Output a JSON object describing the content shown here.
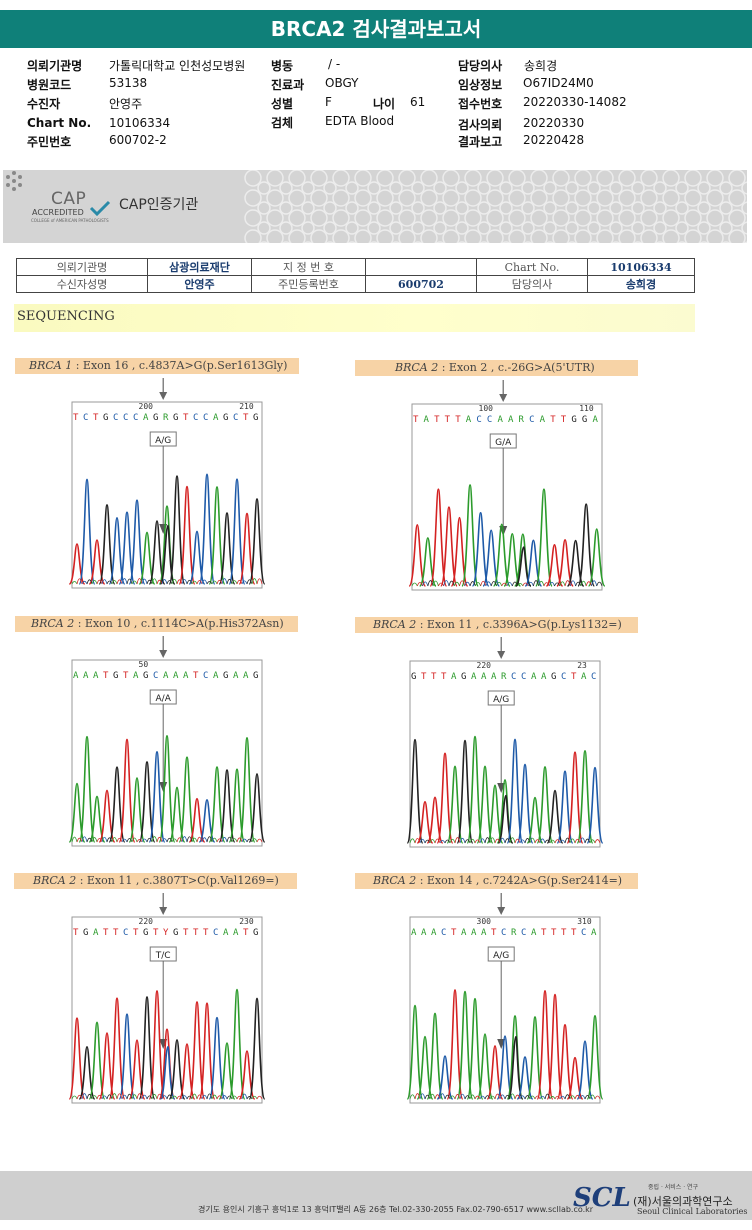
{
  "title": "BRCA2 검사결과보고서",
  "info": {
    "col1": [
      {
        "label": "의뢰기관명",
        "value": "가톨릭대학교 인천성모병원"
      },
      {
        "label": "병원코드",
        "value": "53138"
      },
      {
        "label": "수진자",
        "value": "안영주"
      },
      {
        "label": "Chart No.",
        "value": "10106334"
      },
      {
        "label": "주민번호",
        "value": "600702-2"
      }
    ],
    "col2": [
      {
        "label": "병동",
        "value": "/ -"
      },
      {
        "label": "진료과",
        "value": "OBGY"
      },
      {
        "label": "성별",
        "value": "F"
      },
      {
        "label": "검체",
        "value": "EDTA Blood"
      }
    ],
    "age_label": "나이",
    "age_value": "61",
    "col3": [
      {
        "label": "담당의사",
        "value": "송희경"
      },
      {
        "label": "임상정보",
        "value": "O67ID24M0"
      },
      {
        "label": "접수번호",
        "value": "20220330-14082"
      },
      {
        "label": "검사의뢰",
        "value": "20220330"
      },
      {
        "label": "결과보고",
        "value": "20220428"
      }
    ]
  },
  "cap": {
    "logo_text": "CAP",
    "accredited": "ACCREDITED",
    "college": "COLLEGE of AMERICAN PATHOLOGISTS",
    "label": "CAP인증기관"
  },
  "patient_table": {
    "r1": [
      "의뢰기관명",
      "삼광의료재단",
      "지 정 번 호",
      "",
      "Chart No.",
      "10106334"
    ],
    "r2": [
      "수신자성명",
      "안영주",
      "주민등록번호",
      "600702",
      "담당의사",
      "송희경"
    ]
  },
  "section": "SEQUENCING",
  "panels": [
    {
      "gene": "BRCA 1",
      "desc": " : Exon 16 , c.4837A>G(p.Ser1613Gly)",
      "seq": "TCTGCCCAGRGTCCAGCTG",
      "n1": "200",
      "n2": "210",
      "call": "A/G"
    },
    {
      "gene": "BRCA 2",
      "desc": " : Exon 2 , c.-26G>A(5'UTR)",
      "seq": "TATTTACCAARCATTGGA",
      "n1": "100",
      "n2": "110",
      "call": "G/A"
    },
    {
      "gene": "BRCA 2",
      "desc": " : Exon 10 , c.1114C>A(p.His372Asn)",
      "seq": "AAATGTAGCAAATCAGAAG",
      "n1": "50",
      "n2": "",
      "call": "A/A"
    },
    {
      "gene": "BRCA 2",
      "desc": " : Exon 11 , c.3396A>G(p.Lys1132=)",
      "seq": "GTTTAGAAARCCAAGCTAC",
      "n1": "220",
      "n2": "23",
      "call": "A/G"
    },
    {
      "gene": "BRCA 2",
      "desc": " : Exon 11 , c.3807T>C(p.Val1269=)",
      "seq": "TGATTCTGTYGTTTCAATG",
      "n1": "220",
      "n2": "230",
      "call": "T/C"
    },
    {
      "gene": "BRCA 2",
      "desc": " : Exon 14 , c.7242A>G(p.Ser2414=)",
      "seq": "AAACTAAATCRCATTTTCA",
      "n1": "300",
      "n2": "310",
      "call": "A/G"
    }
  ],
  "footer": {
    "address": "경기도 용인시 기흥구 흥덕1로 13 흥덕IT밸리 A동 26층  Tel.02-330-2055  Fax.02-790-6517  www.scllab.co.kr",
    "logo": "SCL",
    "small": "중립 · 서비스 · 연구",
    "name_ko": "(재)서울의과학연구소",
    "name_en": "Seoul Clinical Laboratories"
  }
}
